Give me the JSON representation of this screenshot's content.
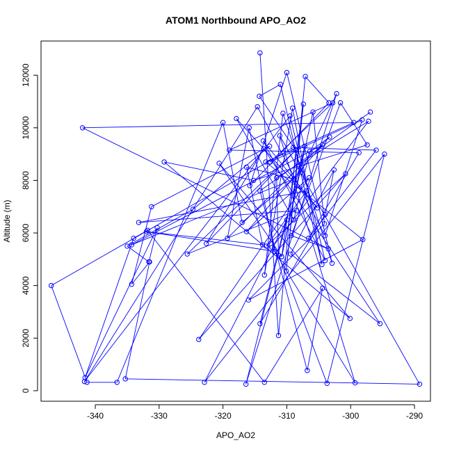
{
  "chart_data": {
    "type": "line",
    "title": "ATOM1 Northbound APO_AO2",
    "xlabel": "APO_AO2",
    "ylabel": "Altitude (m)",
    "xlim": [
      -348.5,
      -287.5
    ],
    "ylim": [
      -400,
      13300
    ],
    "xticks": [
      -340,
      -330,
      -320,
      -310,
      -300,
      -290
    ],
    "yticks": [
      0,
      2000,
      4000,
      6000,
      8000,
      10000,
      12000
    ],
    "line_color": "#0000ff",
    "marker": "open-circle",
    "series": [
      {
        "x": [
          -314.2,
          -311.3,
          -308.6,
          -314.3,
          -311.0,
          -304.5,
          -309.1,
          -313.5,
          -310.6,
          -302.9,
          -310.0,
          -315.8,
          -303.4,
          -307.1,
          -310.1,
          -307.4,
          -310.8,
          -305.9,
          -304.1,
          -316.0,
          -298.1,
          -313.3,
          -299.5,
          -342.0,
          -303.5,
          -309.3,
          -301.6,
          -297.4,
          -315.2,
          -329.2,
          -300.1,
          -320.6,
          -310.8,
          -307.2,
          -314.2,
          -304.0,
          -302.6,
          -309.4,
          -295.4,
          -313.6,
          -322.6,
          -308.6,
          -325.6,
          -308.5,
          -333.2,
          -306.9,
          -313.2,
          -300.8,
          -323.8,
          -306.5,
          -316.3,
          -304.4,
          -334.3,
          -308.9,
          -316.3,
          -313.8,
          -332.0,
          -311.9,
          -315.9,
          -319.3,
          -303.3,
          -306.4,
          -308.9,
          -317.9,
          -305.2,
          -313.7,
          -304.0,
          -309.5,
          -341.7,
          -314.6,
          -304.0,
          -298.2,
          -312.6,
          -302.8,
          -319.0,
          -298.7,
          -306.6,
          -296.0,
          -309.0,
          -346.9,
          -341.3,
          -336.6,
          -320.0,
          -317.0,
          -307.8,
          -302.2,
          -316.4,
          -310.0,
          -322.9,
          -294.7,
          -303.7,
          -311.3,
          -311.6,
          -297.2,
          -312.3,
          -299.3,
          -311.1,
          -289.2,
          -335.3,
          -331.5,
          -334.3,
          -331.2,
          -312.7,
          -324.7,
          -335.0,
          -331.6,
          -330.3,
          -341.6,
          -334.0,
          -331.8,
          -313.5,
          -304.4,
          -306.8,
          -314.2,
          -296.9
        ],
        "y": [
          12850,
          2100,
          9150,
          11200,
          11650,
          4800,
          10750,
          4400,
          10550,
          4850,
          12100,
          7800,
          10950,
          11950,
          4550,
          10900,
          5100,
          10600,
          6350,
          3450,
          5750,
          8700,
          10200,
          10000,
          5400,
          5900,
          10950,
          9350,
          8000,
          8700,
          2750,
          8650,
          5100,
          9300,
          2550,
          6700,
          8400,
          5200,
          2550,
          9200,
          5600,
          9150,
          5200,
          6850,
          6400,
          7600,
          5500,
          8250,
          1950,
          8100,
          6050,
          9350,
          5550,
          8050,
          8500,
          5550,
          6050,
          5300,
          10000,
          5800,
          9650,
          9100,
          6500,
          10350,
          6950,
          9500,
          4950,
          10450,
          350,
          10800,
          5900,
          10300,
          8700,
          10950,
          9150,
          9050,
          5800,
          9150,
          9250,
          4000,
          320,
          320,
          10200,
          6400,
          8300,
          11300,
          250,
          6500,
          320,
          9000,
          280,
          5150,
          8100,
          10250,
          5450,
          300,
          9700,
          250,
          450,
          4900,
          4050,
          7000,
          9300,
          6900,
          5500,
          4900,
          6200,
          500,
          5800,
          6100,
          320,
          3900,
          770,
          7600,
          10600
        ]
      }
    ]
  }
}
